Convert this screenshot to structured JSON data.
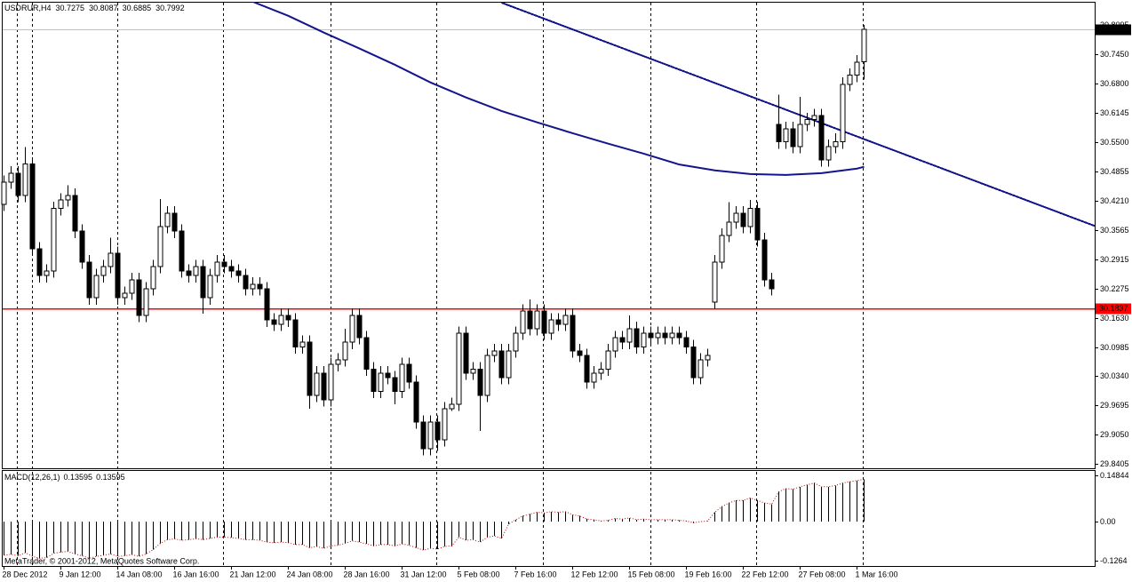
{
  "chart_data": {
    "type": "candlestick",
    "symbol": "USDRUR,H4",
    "categories": [
      "28 Dec 2012",
      null,
      null,
      null,
      null,
      null,
      null,
      null,
      "9 Jan 12:00",
      null,
      null,
      null,
      null,
      null,
      null,
      null,
      "14 Jan 08:00",
      null,
      null,
      null,
      null,
      null,
      null,
      null,
      "16 Jan 16:00",
      null,
      null,
      null,
      null,
      null,
      null,
      null,
      "21 Jan 12:00",
      null,
      null,
      null,
      null,
      null,
      null,
      null,
      "24 Jan 08:00",
      null,
      null,
      null,
      null,
      null,
      null,
      null,
      "28 Jan 16:00",
      null,
      null,
      null,
      null,
      null,
      null,
      null,
      "31 Jan 12:00",
      null,
      null,
      null,
      null,
      null,
      null,
      null,
      "5 Feb 08:00",
      null,
      null,
      null,
      null,
      null,
      null,
      null,
      "7 Feb 16:00",
      null,
      null,
      null,
      null,
      null,
      null,
      null,
      "12 Feb 12:00",
      null,
      null,
      null,
      null,
      null,
      null,
      null,
      "15 Feb 08:00",
      null,
      null,
      null,
      null,
      null,
      null,
      null,
      "19 Feb 16:00",
      null,
      null,
      null,
      null,
      null,
      null,
      null,
      "22 Feb 12:00",
      null,
      null,
      null,
      null,
      null,
      null,
      null,
      "27 Feb 08:00",
      null,
      null,
      null,
      null,
      null,
      null,
      null,
      "1 Mar 16:00",
      null
    ],
    "open": [
      30.413,
      30.462,
      30.482,
      30.433,
      30.502,
      30.315,
      30.256,
      30.266,
      30.404,
      30.423,
      30.433,
      30.354,
      30.286,
      30.207,
      30.256,
      30.276,
      30.305,
      30.207,
      30.217,
      30.247,
      30.168,
      30.227,
      30.276,
      30.364,
      30.394,
      30.354,
      30.266,
      30.256,
      30.276,
      30.207,
      30.256,
      30.286,
      30.276,
      30.266,
      30.256,
      30.227,
      30.237,
      30.227,
      30.158,
      30.149,
      30.168,
      30.158,
      30.099,
      30.109,
      29.992,
      30.041,
      29.982,
      30.06,
      30.07,
      30.109,
      30.168,
      30.119,
      30.05,
      30.001,
      30.041,
      30.031,
      30.001,
      30.06,
      30.021,
      29.933,
      29.874,
      29.933,
      29.894,
      29.962,
      29.972,
      30.129,
      30.041,
      30.05,
      29.992,
      30.08,
      30.09,
      30.031,
      30.09,
      30.129,
      30.178,
      30.139,
      30.178,
      30.129,
      30.158,
      30.149,
      30.168,
      30.09,
      30.08,
      30.021,
      30.041,
      30.05,
      30.09,
      30.119,
      30.109,
      30.139,
      30.099,
      30.129,
      30.119,
      30.129,
      30.119,
      30.129,
      30.119,
      30.099,
      30.031,
      30.07,
      30.198,
      30.286,
      30.345,
      30.374,
      30.394,
      30.364,
      30.404,
      30.335,
      30.247,
      30.59,
      30.551,
      30.58,
      30.541,
      30.59,
      30.6,
      30.609,
      30.511,
      30.541,
      30.551,
      30.678,
      30.698,
      30.7275
    ],
    "high": [
      30.477,
      30.497,
      30.497,
      30.54,
      30.517,
      30.33,
      30.281,
      30.419,
      30.438,
      30.455,
      30.448,
      30.369,
      30.301,
      30.271,
      30.291,
      30.34,
      30.32,
      30.232,
      30.262,
      30.262,
      30.242,
      30.291,
      30.425,
      30.409,
      30.409,
      30.369,
      30.281,
      30.291,
      30.291,
      30.271,
      30.301,
      30.301,
      30.291,
      30.281,
      30.271,
      30.252,
      30.252,
      30.242,
      30.173,
      30.183,
      30.183,
      30.173,
      30.124,
      30.124,
      30.056,
      30.056,
      30.075,
      30.085,
      30.139,
      30.183,
      30.183,
      30.134,
      30.065,
      30.056,
      30.056,
      30.046,
      30.075,
      30.075,
      30.036,
      29.948,
      29.948,
      29.948,
      29.977,
      29.987,
      30.144,
      30.144,
      30.065,
      30.065,
      30.095,
      30.105,
      30.105,
      30.105,
      30.144,
      30.193,
      30.203,
      30.193,
      30.193,
      30.173,
      30.173,
      30.183,
      30.183,
      30.105,
      30.095,
      30.056,
      30.065,
      30.105,
      30.134,
      30.134,
      30.168,
      30.154,
      30.144,
      30.144,
      30.144,
      30.144,
      30.144,
      30.144,
      30.134,
      30.114,
      30.085,
      30.095,
      30.301,
      30.36,
      30.418,
      30.409,
      30.409,
      30.423,
      30.419,
      30.35,
      30.262,
      30.655,
      30.595,
      30.595,
      30.65,
      30.615,
      30.624,
      30.624,
      30.556,
      30.57,
      30.693,
      30.713,
      30.742,
      30.8087
    ],
    "low": [
      30.398,
      30.447,
      30.418,
      30.418,
      30.3,
      30.241,
      30.241,
      30.251,
      30.389,
      30.408,
      30.339,
      30.271,
      30.192,
      30.192,
      30.241,
      30.261,
      30.192,
      30.192,
      30.202,
      30.153,
      30.153,
      30.212,
      30.261,
      30.349,
      30.339,
      30.251,
      30.241,
      30.241,
      30.172,
      30.192,
      30.241,
      30.261,
      30.251,
      30.241,
      30.212,
      30.212,
      30.212,
      30.143,
      30.134,
      30.134,
      30.143,
      30.084,
      30.084,
      29.962,
      29.977,
      29.967,
      29.967,
      30.045,
      30.055,
      30.094,
      30.104,
      30.035,
      29.986,
      29.986,
      30.016,
      29.972,
      29.986,
      30.006,
      29.918,
      29.859,
      29.859,
      29.869,
      29.879,
      29.957,
      29.957,
      30.026,
      30.026,
      29.913,
      29.977,
      30.065,
      30.016,
      30.016,
      30.075,
      30.114,
      30.124,
      30.124,
      30.114,
      30.114,
      30.134,
      30.134,
      30.075,
      30.065,
      30.006,
      30.006,
      30.026,
      30.035,
      30.075,
      30.094,
      30.094,
      30.084,
      30.084,
      30.104,
      30.104,
      30.104,
      30.104,
      30.104,
      30.084,
      30.016,
      30.016,
      30.055,
      30.183,
      30.271,
      30.33,
      30.359,
      30.349,
      30.349,
      30.32,
      30.232,
      30.212,
      30.536,
      30.536,
      30.526,
      30.526,
      30.575,
      30.585,
      30.496,
      30.496,
      30.526,
      30.536,
      30.663,
      30.683,
      30.6885
    ],
    "close": [
      30.462,
      30.482,
      30.433,
      30.502,
      30.315,
      30.256,
      30.266,
      30.404,
      30.423,
      30.433,
      30.354,
      30.286,
      30.207,
      30.256,
      30.276,
      30.305,
      30.207,
      30.217,
      30.247,
      30.168,
      30.227,
      30.276,
      30.364,
      30.394,
      30.354,
      30.266,
      30.256,
      30.276,
      30.207,
      30.256,
      30.286,
      30.276,
      30.266,
      30.256,
      30.227,
      30.237,
      30.227,
      30.158,
      30.149,
      30.168,
      30.158,
      30.099,
      30.109,
      29.992,
      30.041,
      29.982,
      30.06,
      30.07,
      30.109,
      30.168,
      30.119,
      30.05,
      30.001,
      30.041,
      30.031,
      30.001,
      30.06,
      30.021,
      29.933,
      29.874,
      29.933,
      29.894,
      29.962,
      29.972,
      30.129,
      30.041,
      30.05,
      29.992,
      30.08,
      30.09,
      30.031,
      30.09,
      30.129,
      30.178,
      30.139,
      30.178,
      30.129,
      30.158,
      30.149,
      30.168,
      30.09,
      30.08,
      30.021,
      30.041,
      30.05,
      30.09,
      30.119,
      30.109,
      30.139,
      30.099,
      30.129,
      30.119,
      30.129,
      30.119,
      30.129,
      30.119,
      30.099,
      30.031,
      30.07,
      30.08,
      30.286,
      30.345,
      30.374,
      30.394,
      30.364,
      30.404,
      30.335,
      30.247,
      30.227,
      30.551,
      30.58,
      30.541,
      30.59,
      30.6,
      30.609,
      30.511,
      30.541,
      30.551,
      30.678,
      30.698,
      30.727,
      30.7992
    ],
    "up_color": "#ffffff",
    "down_color": "#000000",
    "ylim": [
      29.831,
      30.86
    ],
    "yticks": [
      30.8095,
      {
        "value": 30.745,
        "label": "30.7450"
      },
      {
        "value": 30.68,
        "label": "30.6800"
      },
      30.6145,
      {
        "value": 30.55,
        "label": "30.5500"
      },
      30.4855,
      {
        "value": 30.421,
        "label": "30.4210"
      },
      30.3565,
      30.2915,
      30.2275,
      {
        "value": 30.163,
        "label": "30.1630"
      },
      30.0985,
      {
        "value": 30.034,
        "label": "30.0340"
      },
      29.9695,
      {
        "value": 29.905,
        "label": "29.9050"
      },
      29.8405
    ],
    "ma": {
      "color": "#14148c",
      "x": [
        35,
        40,
        45,
        50,
        55,
        60,
        65,
        70,
        75,
        80,
        85,
        90,
        95,
        100,
        105,
        110,
        115,
        120,
        121
      ],
      "values": [
        30.86,
        30.829,
        30.792,
        30.757,
        30.721,
        30.682,
        30.649,
        30.619,
        30.594,
        30.57,
        30.547,
        30.525,
        30.501,
        30.488,
        30.48,
        30.478,
        30.482,
        30.492,
        30.496
      ]
    },
    "trendline": {
      "color": "#14148c",
      "x": [
        70,
        121
      ],
      "y": [
        30.858,
        30.557
      ]
    },
    "level": {
      "value": 30.1837,
      "color": "#ff0000"
    },
    "macd": {
      "title": "MACD(12,26,1)",
      "ylim": [
        -0.1427,
        0.1656
      ],
      "yticks": [
        0.14844,
        {
          "value": 0,
          "label": "0.00"
        },
        -0.1264
      ],
      "histogram": {
        "color": "#000000",
        "values": [
          -0.108,
          -0.105,
          -0.11,
          -0.1,
          -0.112,
          -0.118,
          -0.116,
          -0.102,
          -0.098,
          -0.096,
          -0.104,
          -0.11,
          -0.118,
          -0.112,
          -0.108,
          -0.104,
          -0.112,
          -0.11,
          -0.106,
          -0.112,
          -0.104,
          -0.09,
          -0.07,
          -0.058,
          -0.056,
          -0.06,
          -0.058,
          -0.055,
          -0.058,
          -0.054,
          -0.05,
          -0.05,
          -0.052,
          -0.054,
          -0.058,
          -0.058,
          -0.06,
          -0.066,
          -0.068,
          -0.066,
          -0.068,
          -0.074,
          -0.074,
          -0.084,
          -0.08,
          -0.086,
          -0.078,
          -0.076,
          -0.07,
          -0.062,
          -0.066,
          -0.072,
          -0.078,
          -0.074,
          -0.074,
          -0.078,
          -0.072,
          -0.076,
          -0.084,
          -0.092,
          -0.086,
          -0.088,
          -0.08,
          -0.078,
          -0.05,
          -0.06,
          -0.058,
          -0.066,
          -0.05,
          -0.046,
          -0.054,
          -0.008,
          0.006,
          0.018,
          0.024,
          0.03,
          0.028,
          0.032,
          0.03,
          0.032,
          0.022,
          0.018,
          0.008,
          0.006,
          0.002,
          0.004,
          0.01,
          0.008,
          0.012,
          0.006,
          0.008,
          0.006,
          0.006,
          0.006,
          0.006,
          0.004,
          0.002,
          -0.004,
          0.0,
          0.002,
          0.03,
          0.048,
          0.06,
          0.068,
          0.068,
          0.076,
          0.068,
          0.06,
          0.056,
          0.096,
          0.106,
          0.104,
          0.112,
          0.118,
          0.124,
          0.112,
          0.112,
          0.116,
          0.124,
          0.128,
          0.132,
          0.13595
        ]
      },
      "signal": {
        "color": "#c00000",
        "values": [
          -0.108,
          -0.105,
          -0.11,
          -0.1,
          -0.112,
          -0.118,
          -0.116,
          -0.102,
          -0.098,
          -0.096,
          -0.104,
          -0.11,
          -0.118,
          -0.112,
          -0.108,
          -0.104,
          -0.112,
          -0.11,
          -0.106,
          -0.112,
          -0.104,
          -0.09,
          -0.07,
          -0.058,
          -0.056,
          -0.06,
          -0.058,
          -0.055,
          -0.058,
          -0.054,
          -0.05,
          -0.05,
          -0.052,
          -0.054,
          -0.058,
          -0.058,
          -0.06,
          -0.066,
          -0.068,
          -0.066,
          -0.068,
          -0.074,
          -0.074,
          -0.084,
          -0.08,
          -0.086,
          -0.078,
          -0.076,
          -0.07,
          -0.062,
          -0.066,
          -0.072,
          -0.078,
          -0.074,
          -0.074,
          -0.078,
          -0.072,
          -0.076,
          -0.084,
          -0.092,
          -0.086,
          -0.088,
          -0.08,
          -0.078,
          -0.05,
          -0.06,
          -0.058,
          -0.066,
          -0.05,
          -0.046,
          -0.054,
          -0.008,
          0.006,
          0.018,
          0.024,
          0.03,
          0.028,
          0.032,
          0.03,
          0.032,
          0.022,
          0.018,
          0.008,
          0.006,
          0.002,
          0.004,
          0.01,
          0.008,
          0.012,
          0.006,
          0.008,
          0.006,
          0.006,
          0.006,
          0.006,
          0.004,
          0.002,
          -0.004,
          0.0,
          0.002,
          0.03,
          0.048,
          0.06,
          0.068,
          0.068,
          0.076,
          0.068,
          0.06,
          0.056,
          0.096,
          0.106,
          0.104,
          0.112,
          0.118,
          0.124,
          0.112,
          0.112,
          0.116,
          0.124,
          0.128,
          0.132,
          0.13595
        ]
      }
    }
  },
  "footer": "MetaTrader, © 2001-2012, MetaQuotes Software Corp."
}
